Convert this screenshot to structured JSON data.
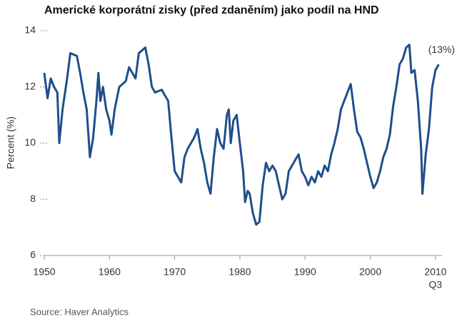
{
  "chart_data": {
    "type": "line",
    "title": "Americké korporátní zisky (před zdaněním) jako podíl na HND",
    "y_label": "Percent (%)",
    "annotation": "(13%)",
    "x_note": "Q3",
    "source": "Source: Haver Analytics",
    "color": "#1f4e8c",
    "x": [
      1950.0,
      1950.5,
      1951.0,
      1951.5,
      1952.0,
      1952.3,
      1952.8,
      1953.5,
      1954.0,
      1955.0,
      1955.5,
      1956.0,
      1956.5,
      1957.0,
      1957.5,
      1958.0,
      1958.3,
      1958.6,
      1959.0,
      1959.5,
      1960.0,
      1960.3,
      1960.8,
      1961.5,
      1962.5,
      1963.0,
      1963.5,
      1964.0,
      1964.5,
      1965.5,
      1966.0,
      1966.5,
      1967.0,
      1968.0,
      1968.5,
      1969.0,
      1969.5,
      1970.0,
      1970.5,
      1971.0,
      1971.5,
      1972.0,
      1973.0,
      1973.5,
      1974.0,
      1974.5,
      1975.0,
      1975.5,
      1976.0,
      1976.5,
      1977.0,
      1977.5,
      1978.0,
      1978.3,
      1978.6,
      1979.0,
      1979.5,
      1980.0,
      1980.5,
      1980.8,
      1981.2,
      1981.5,
      1982.0,
      1982.5,
      1983.0,
      1983.5,
      1984.0,
      1984.5,
      1985.0,
      1985.5,
      1986.0,
      1986.5,
      1987.0,
      1987.5,
      1988.0,
      1988.5,
      1989.0,
      1989.5,
      1990.0,
      1990.5,
      1991.0,
      1991.5,
      1992.0,
      1992.5,
      1993.0,
      1993.5,
      1994.0,
      1994.5,
      1995.0,
      1995.5,
      1996.0,
      1996.5,
      1997.0,
      1997.5,
      1998.0,
      1998.5,
      1999.0,
      1999.5,
      2000.0,
      2000.5,
      2001.0,
      2001.5,
      2002.0,
      2002.5,
      2003.0,
      2003.5,
      2004.0,
      2004.5,
      2005.0,
      2005.5,
      2006.0,
      2006.3,
      2006.8,
      2007.3,
      2007.8,
      2008.0,
      2008.5,
      2009.0,
      2009.5,
      2010.0,
      2010.5
    ],
    "values": [
      12.5,
      11.6,
      12.3,
      12.0,
      11.8,
      10.0,
      11.2,
      12.3,
      13.2,
      13.1,
      12.5,
      11.8,
      11.2,
      9.5,
      10.2,
      11.5,
      12.5,
      11.5,
      12.0,
      11.2,
      10.8,
      10.3,
      11.2,
      12.0,
      12.2,
      12.7,
      12.5,
      12.3,
      13.2,
      13.4,
      12.8,
      12.0,
      11.8,
      11.9,
      11.7,
      11.5,
      10.2,
      9.0,
      8.8,
      8.6,
      9.5,
      9.8,
      10.2,
      10.5,
      9.8,
      9.3,
      8.6,
      8.2,
      9.5,
      10.5,
      10.0,
      9.8,
      11.0,
      11.2,
      10.0,
      10.8,
      11.0,
      10.0,
      9.0,
      7.9,
      8.3,
      8.2,
      7.5,
      7.1,
      7.2,
      8.5,
      9.3,
      9.0,
      9.2,
      9.0,
      8.5,
      8.0,
      8.2,
      9.0,
      9.2,
      9.4,
      9.6,
      9.0,
      8.8,
      8.5,
      8.8,
      8.6,
      9.0,
      8.8,
      9.2,
      9.0,
      9.6,
      10.0,
      10.5,
      11.2,
      11.5,
      11.8,
      12.1,
      11.2,
      10.4,
      10.2,
      9.8,
      9.3,
      8.8,
      8.4,
      8.6,
      9.0,
      9.5,
      9.8,
      10.3,
      11.3,
      12.0,
      12.8,
      13.0,
      13.4,
      13.5,
      12.5,
      12.6,
      11.5,
      9.8,
      8.2,
      9.6,
      10.5,
      12.0,
      12.6,
      12.8
    ],
    "xlim": [
      1950,
      2011
    ],
    "xticks": [
      1950,
      1960,
      1970,
      1980,
      1990,
      2000,
      2010
    ],
    "ylim": [
      6,
      14
    ],
    "yticks": [
      6,
      8,
      10,
      12,
      14
    ]
  }
}
